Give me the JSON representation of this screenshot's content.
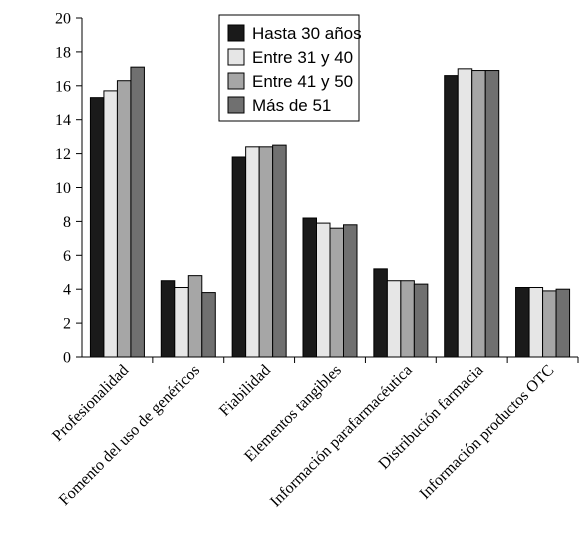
{
  "chart_data": {
    "type": "bar",
    "title": "",
    "xlabel": "",
    "ylabel": "",
    "ylim": [
      0,
      20
    ],
    "yticks": [
      0,
      2,
      4,
      6,
      8,
      10,
      12,
      14,
      16,
      18,
      20
    ],
    "grid": false,
    "legend_position": "top-center",
    "categories": [
      "Profesionalidad",
      "Fomento del uso de genéricos",
      "Fiabilidad",
      "Elementos tangibles",
      "Información parafarmacéutica",
      "Distribución farmacia",
      "Información productos OTC"
    ],
    "series": [
      {
        "name": "Hasta 30 años",
        "color": "#1a1a1a",
        "values": [
          15.3,
          4.5,
          11.8,
          8.2,
          5.2,
          16.6,
          4.1
        ]
      },
      {
        "name": "Entre 31 y 40",
        "color": "#e6e6e6",
        "values": [
          15.7,
          4.1,
          12.4,
          7.9,
          4.5,
          17.0,
          4.1
        ]
      },
      {
        "name": "Entre 41 y 50",
        "color": "#a6a6a6",
        "values": [
          16.3,
          4.8,
          12.4,
          7.6,
          4.5,
          16.9,
          3.9
        ]
      },
      {
        "name": "Más de 51",
        "color": "#707070",
        "values": [
          17.1,
          3.8,
          12.5,
          7.8,
          4.3,
          16.9,
          4.0
        ]
      }
    ]
  }
}
